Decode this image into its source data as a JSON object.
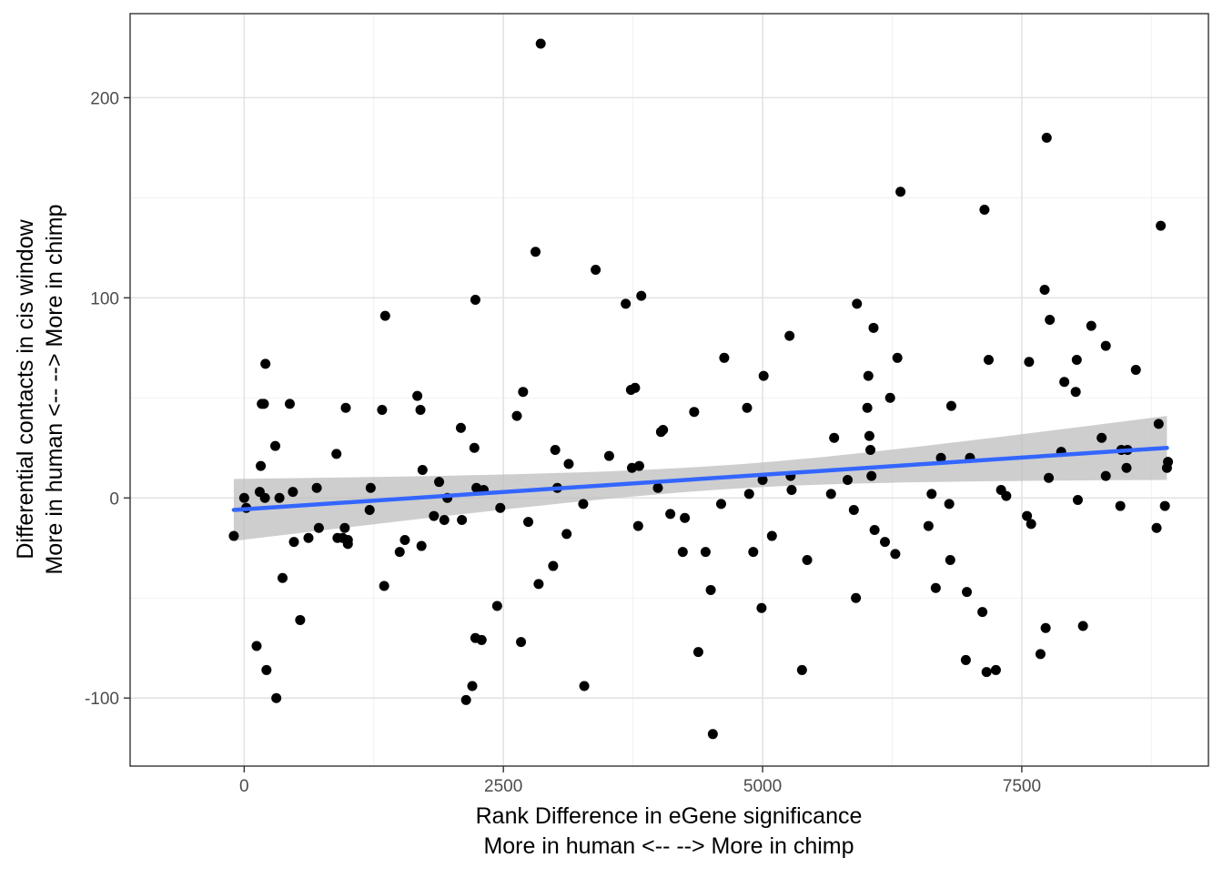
{
  "chart_data": {
    "type": "scatter",
    "title": "",
    "xlabel": [
      "Rank Difference in eGene significance",
      "More in human <--  --> More in chimp"
    ],
    "ylabel": [
      "Differential contacts in cis window",
      "More in human <--  --> More in chimp"
    ],
    "xlim": [
      -1100,
      9300
    ],
    "ylim": [
      -134,
      242
    ],
    "x_ticks": [
      0,
      2500,
      5000,
      7500
    ],
    "x_tick_labels": [
      "0",
      "2500",
      "5000",
      "7500"
    ],
    "y_ticks": [
      -100,
      0,
      100,
      200
    ],
    "y_tick_labels": [
      "-100",
      "0",
      "100",
      "200"
    ],
    "grid": true,
    "point_color": "#000000",
    "smooth": {
      "method": "linear",
      "color": "#3366ff",
      "ribbon_color": "#bdbdbd",
      "x": [
        -100,
        8900
      ],
      "y": [
        -6,
        25
      ],
      "ci_lower": [
        -21,
        9
      ],
      "ci_upper": [
        10,
        41
      ],
      "ci_min_width_x": 4600,
      "ci_min_halfwidth": 6
    },
    "points": [
      [
        -100,
        -19
      ],
      [
        0,
        0
      ],
      [
        20,
        -5
      ],
      [
        120,
        -74
      ],
      [
        150,
        3
      ],
      [
        160,
        16
      ],
      [
        170,
        47
      ],
      [
        190,
        47
      ],
      [
        200,
        0
      ],
      [
        205,
        67
      ],
      [
        215,
        -86
      ],
      [
        300,
        26
      ],
      [
        310,
        -100
      ],
      [
        340,
        0
      ],
      [
        370,
        -40
      ],
      [
        440,
        47
      ],
      [
        470,
        3
      ],
      [
        480,
        -22
      ],
      [
        540,
        -61
      ],
      [
        620,
        -20
      ],
      [
        700,
        5
      ],
      [
        720,
        -15
      ],
      [
        890,
        22
      ],
      [
        900,
        -20
      ],
      [
        950,
        -20
      ],
      [
        970,
        -15
      ],
      [
        980,
        45
      ],
      [
        1000,
        -21
      ],
      [
        1000,
        -23
      ],
      [
        1210,
        -6
      ],
      [
        1220,
        5
      ],
      [
        1330,
        44
      ],
      [
        1350,
        -44
      ],
      [
        1360,
        91
      ],
      [
        1500,
        -27
      ],
      [
        1550,
        -21
      ],
      [
        1670,
        51
      ],
      [
        1700,
        44
      ],
      [
        1710,
        -24
      ],
      [
        1720,
        14
      ],
      [
        1830,
        -9
      ],
      [
        1880,
        8
      ],
      [
        1930,
        -11
      ],
      [
        1960,
        0
      ],
      [
        2090,
        35
      ],
      [
        2100,
        -11
      ],
      [
        2140,
        -101
      ],
      [
        2200,
        -94
      ],
      [
        2220,
        25
      ],
      [
        2230,
        99
      ],
      [
        2230,
        -70
      ],
      [
        2240,
        5
      ],
      [
        2290,
        -71
      ],
      [
        2310,
        4
      ],
      [
        2440,
        -54
      ],
      [
        2470,
        -5
      ],
      [
        2630,
        41
      ],
      [
        2670,
        -72
      ],
      [
        2690,
        53
      ],
      [
        2740,
        -12
      ],
      [
        2810,
        123
      ],
      [
        2840,
        -43
      ],
      [
        2860,
        227
      ],
      [
        2980,
        -34
      ],
      [
        3000,
        24
      ],
      [
        3020,
        5
      ],
      [
        3110,
        -18
      ],
      [
        3130,
        17
      ],
      [
        3270,
        -3
      ],
      [
        3280,
        -94
      ],
      [
        3390,
        114
      ],
      [
        3520,
        21
      ],
      [
        3680,
        97
      ],
      [
        3730,
        54
      ],
      [
        3740,
        15
      ],
      [
        3770,
        55
      ],
      [
        3800,
        -14
      ],
      [
        3810,
        16
      ],
      [
        3830,
        101
      ],
      [
        3990,
        5
      ],
      [
        4020,
        33
      ],
      [
        4040,
        34
      ],
      [
        4110,
        -8
      ],
      [
        4230,
        -27
      ],
      [
        4250,
        -10
      ],
      [
        4340,
        43
      ],
      [
        4380,
        -77
      ],
      [
        4450,
        -27
      ],
      [
        4500,
        -46
      ],
      [
        4520,
        -118
      ],
      [
        4600,
        -3
      ],
      [
        4630,
        70
      ],
      [
        4850,
        45
      ],
      [
        4870,
        2
      ],
      [
        4910,
        -27
      ],
      [
        4990,
        -55
      ],
      [
        5000,
        9
      ],
      [
        5010,
        61
      ],
      [
        5090,
        -19
      ],
      [
        5260,
        81
      ],
      [
        5270,
        11
      ],
      [
        5280,
        4
      ],
      [
        5380,
        -86
      ],
      [
        5430,
        -31
      ],
      [
        5660,
        2
      ],
      [
        5690,
        30
      ],
      [
        5820,
        9
      ],
      [
        5880,
        -6
      ],
      [
        5900,
        -50
      ],
      [
        5910,
        97
      ],
      [
        6010,
        45
      ],
      [
        6020,
        61
      ],
      [
        6030,
        31
      ],
      [
        6040,
        24
      ],
      [
        6050,
        11
      ],
      [
        6070,
        85
      ],
      [
        6080,
        -16
      ],
      [
        6180,
        -22
      ],
      [
        6230,
        50
      ],
      [
        6280,
        -28
      ],
      [
        6300,
        70
      ],
      [
        6330,
        153
      ],
      [
        6600,
        -14
      ],
      [
        6630,
        2
      ],
      [
        6670,
        -45
      ],
      [
        6720,
        20
      ],
      [
        6800,
        -3
      ],
      [
        6810,
        -31
      ],
      [
        6820,
        46
      ],
      [
        6960,
        -81
      ],
      [
        6970,
        -47
      ],
      [
        7000,
        20
      ],
      [
        7120,
        -57
      ],
      [
        7140,
        144
      ],
      [
        7160,
        -87
      ],
      [
        7180,
        69
      ],
      [
        7250,
        -86
      ],
      [
        7300,
        4
      ],
      [
        7350,
        1
      ],
      [
        7550,
        -9
      ],
      [
        7570,
        68
      ],
      [
        7590,
        -13
      ],
      [
        7680,
        -78
      ],
      [
        7720,
        104
      ],
      [
        7730,
        -65
      ],
      [
        7740,
        180
      ],
      [
        7760,
        10
      ],
      [
        7770,
        89
      ],
      [
        7880,
        23
      ],
      [
        7910,
        58
      ],
      [
        8020,
        53
      ],
      [
        8030,
        69
      ],
      [
        8040,
        -1
      ],
      [
        8090,
        -64
      ],
      [
        8170,
        86
      ],
      [
        8270,
        30
      ],
      [
        8310,
        76
      ],
      [
        8310,
        11
      ],
      [
        8450,
        -4
      ],
      [
        8460,
        24
      ],
      [
        8510,
        15
      ],
      [
        8520,
        24
      ],
      [
        8600,
        64
      ],
      [
        8800,
        -15
      ],
      [
        8820,
        37
      ],
      [
        8840,
        136
      ],
      [
        8880,
        -4
      ],
      [
        8900,
        15
      ],
      [
        8910,
        18
      ]
    ]
  }
}
